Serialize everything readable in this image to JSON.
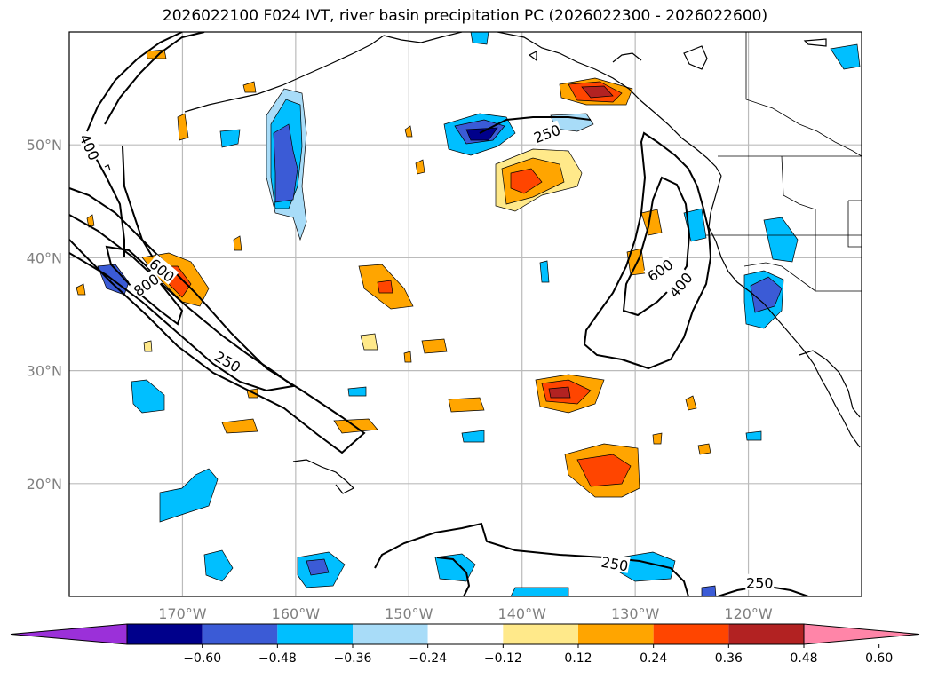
{
  "title": "2026022100 F024 IVT, river basin precipitation PC (2026022300 - 2026022600)",
  "map": {
    "lon_range": [
      -180,
      -110
    ],
    "lat_range": [
      10,
      60
    ],
    "lat_ticks": [
      {
        "value": 20,
        "label": "20°N"
      },
      {
        "value": 30,
        "label": "30°N"
      },
      {
        "value": 40,
        "label": "40°N"
      },
      {
        "value": 50,
        "label": "50°N"
      }
    ],
    "lon_ticks": [
      {
        "value": -170,
        "label": "170°W"
      },
      {
        "value": -160,
        "label": "160°W"
      },
      {
        "value": -150,
        "label": "150°W"
      },
      {
        "value": -140,
        "label": "140°W"
      },
      {
        "value": -130,
        "label": "130°W"
      },
      {
        "value": -120,
        "label": "120°W"
      }
    ],
    "ivt_contour_labels": [
      {
        "text": "400",
        "lon": -178.2,
        "lat": 49.8,
        "rot": 65
      },
      {
        "text": "600",
        "lon": -171.8,
        "lat": 38.9,
        "rot": 40
      },
      {
        "text": "800",
        "lon": -173.2,
        "lat": 37.6,
        "rot": -35
      },
      {
        "text": "250",
        "lon": -166.0,
        "lat": 30.8,
        "rot": 30
      },
      {
        "text": "250",
        "lon": -137.8,
        "lat": 51.0,
        "rot": -20
      },
      {
        "text": "600",
        "lon": -127.8,
        "lat": 38.9,
        "rot": -35
      },
      {
        "text": "400",
        "lon": -126.0,
        "lat": 37.6,
        "rot": -50
      },
      {
        "text": "250",
        "lon": -131.8,
        "lat": 12.9,
        "rot": 10
      },
      {
        "text": "250",
        "lon": -119.0,
        "lat": 11.2,
        "rot": 0
      }
    ]
  },
  "colorbar": {
    "colors": [
      "#9b30d9",
      "#00008b",
      "#3b5bd6",
      "#00bfff",
      "#a8dcf8",
      "#ffffff",
      "#ffe98a",
      "#ffa500",
      "#ff4500",
      "#b22222",
      "#ff85a8"
    ],
    "tick_labels": [
      "−0.60",
      "−0.48",
      "−0.36",
      "−0.24",
      "−0.12",
      "0.12",
      "0.24",
      "0.36",
      "0.48",
      "0.60"
    ]
  },
  "ivt_color": "#000000",
  "grid_color": "#bbbbbb"
}
